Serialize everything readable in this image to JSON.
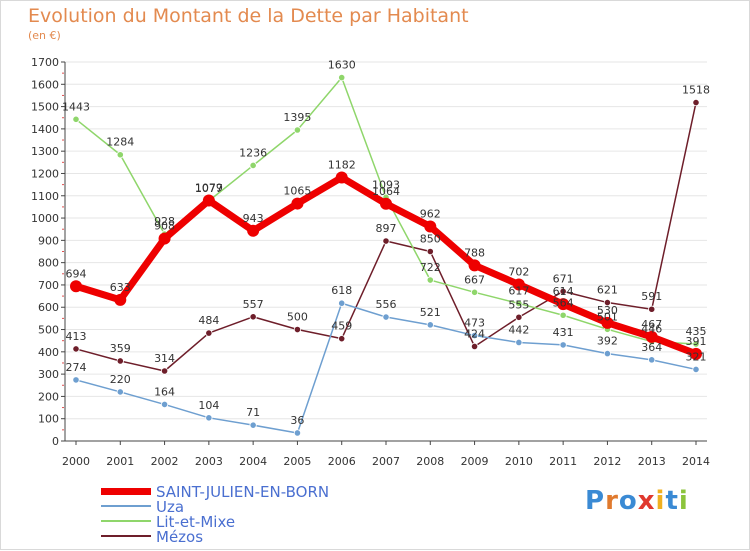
{
  "title": "Evolution du Montant de la Dette par Habitant",
  "unit": "(en €)",
  "logo": {
    "letters": [
      "P",
      "r",
      "o",
      "x",
      "i",
      "t",
      "i"
    ],
    "colors": [
      "#3a8ad4",
      "#e07a2e",
      "#3a8ad4",
      "#e0382e",
      "#f0b020",
      "#3a8ad4",
      "#8cc43c"
    ]
  },
  "colors": {
    "title": "#e38a4f",
    "legend_text": "#4a6fd0",
    "axis": "#444444",
    "grid": "#e6e6e6"
  },
  "chart_data": {
    "type": "line",
    "title": "Evolution du Montant de la Dette par Habitant",
    "ylabel": "(en €)",
    "x": [
      "2000",
      "2001",
      "2002",
      "2003",
      "2004",
      "2005",
      "2006",
      "2007",
      "2008",
      "2009",
      "2010",
      "2011",
      "2012",
      "2013",
      "2014"
    ],
    "ylim": [
      0,
      1700
    ],
    "yticks": [
      0,
      100,
      200,
      300,
      400,
      500,
      600,
      700,
      800,
      900,
      1000,
      1100,
      1200,
      1300,
      1400,
      1500,
      1600,
      1700
    ],
    "grid": true,
    "legend": "bottom-left",
    "series": [
      {
        "name": "Mézos",
        "color": "#6e1e2a",
        "stroke": 1.5,
        "r": 3.2,
        "values": [
          413,
          359,
          314,
          484,
          557,
          500,
          459,
          897,
          850,
          424,
          555,
          671,
          621,
          591,
          1518
        ],
        "labels": [
          "413",
          "359",
          "314",
          "484",
          "557",
          "500",
          "459",
          "897",
          "850",
          "424",
          "555",
          "671",
          "621",
          "591",
          "1518"
        ]
      },
      {
        "name": "Uza",
        "color": "#6e9fd0",
        "stroke": 1.5,
        "r": 3.2,
        "values": [
          274,
          220,
          164,
          104,
          71,
          36,
          618,
          556,
          521,
          473,
          442,
          431,
          392,
          364,
          321
        ],
        "labels": [
          "274",
          "220",
          "164",
          "104",
          "71",
          "36",
          "618",
          "556",
          "521",
          "473",
          "442",
          "431",
          "392",
          "364",
          "321"
        ]
      },
      {
        "name": "Lit-et-Mixe",
        "color": "#8fd66b",
        "stroke": 1.5,
        "r": 3.2,
        "values": [
          1443,
          1284,
          928,
          1077,
          1236,
          1395,
          1630,
          1093,
          722,
          667,
          617,
          564,
          501,
          446,
          435
        ],
        "labels": [
          "1443",
          "1284",
          "928",
          "1077",
          "1236",
          "1395",
          "1630",
          "1093",
          "722",
          "667",
          "617",
          "564",
          "501",
          "446",
          "435"
        ]
      },
      {
        "name": "SAINT-JULIEN-EN-BORN",
        "color": "#ee0000",
        "stroke": 7,
        "r": 6,
        "values": [
          694,
          633,
          908,
          1079,
          943,
          1065,
          1182,
          1064,
          962,
          788,
          702,
          614,
          530,
          467,
          391
        ],
        "labels": [
          "694",
          "633",
          "908",
          "1079",
          "943",
          "1065",
          "1182",
          "1064",
          "962",
          "788",
          "702",
          "614",
          "530",
          "467",
          "391"
        ]
      }
    ]
  },
  "legend_items": [
    {
      "name": "SAINT-JULIEN-EN-BORN",
      "color": "#ee0000",
      "thickness": 7
    },
    {
      "name": "Uza",
      "color": "#6e9fd0",
      "thickness": 2
    },
    {
      "name": "Lit-et-Mixe",
      "color": "#8fd66b",
      "thickness": 2
    },
    {
      "name": "Mézos",
      "color": "#6e1e2a",
      "thickness": 2
    }
  ]
}
